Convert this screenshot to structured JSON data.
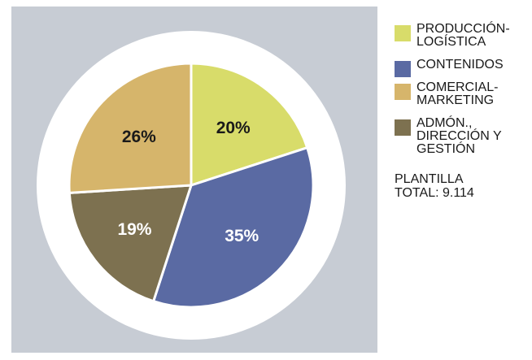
{
  "colors": {
    "panel": "#c7ccd4",
    "disc": "#ffffff",
    "label_dark": "#1a1a1a",
    "label_light": "#ffffff"
  },
  "chart_data": {
    "type": "pie",
    "title": "",
    "slices": [
      {
        "name": "PRODUCCIÓN-LOGÍSTICA",
        "lines": [
          "PRODUCCIÓN-",
          "LOGÍSTICA"
        ],
        "value": 20,
        "label": "20%",
        "color": "#d8dc6a",
        "label_color": "#1a1a1a"
      },
      {
        "name": "CONTENIDOS",
        "lines": [
          "CONTENIDOS"
        ],
        "value": 35,
        "label": "35%",
        "color": "#5a6aa3",
        "label_color": "#ffffff"
      },
      {
        "name": "ADMÓN., DIRECCIÓN Y GESTIÓN",
        "lines": [
          "ADMÓN.,",
          "DIRECCIÓN Y",
          "GESTIÓN"
        ],
        "value": 19,
        "label": "19%",
        "color": "#7d7150",
        "label_color": "#ffffff"
      },
      {
        "name": "COMERCIAL-MARKETING",
        "lines": [
          "COMERCIAL-",
          "MARKETING"
        ],
        "value": 26,
        "label": "26%",
        "color": "#d6b56b",
        "label_color": "#1a1a1a"
      }
    ],
    "legend_order": [
      0,
      1,
      3,
      2
    ],
    "legend_placement": "right"
  },
  "total": {
    "line1": "PLANTILLA",
    "line2": "TOTAL: 9.114"
  }
}
